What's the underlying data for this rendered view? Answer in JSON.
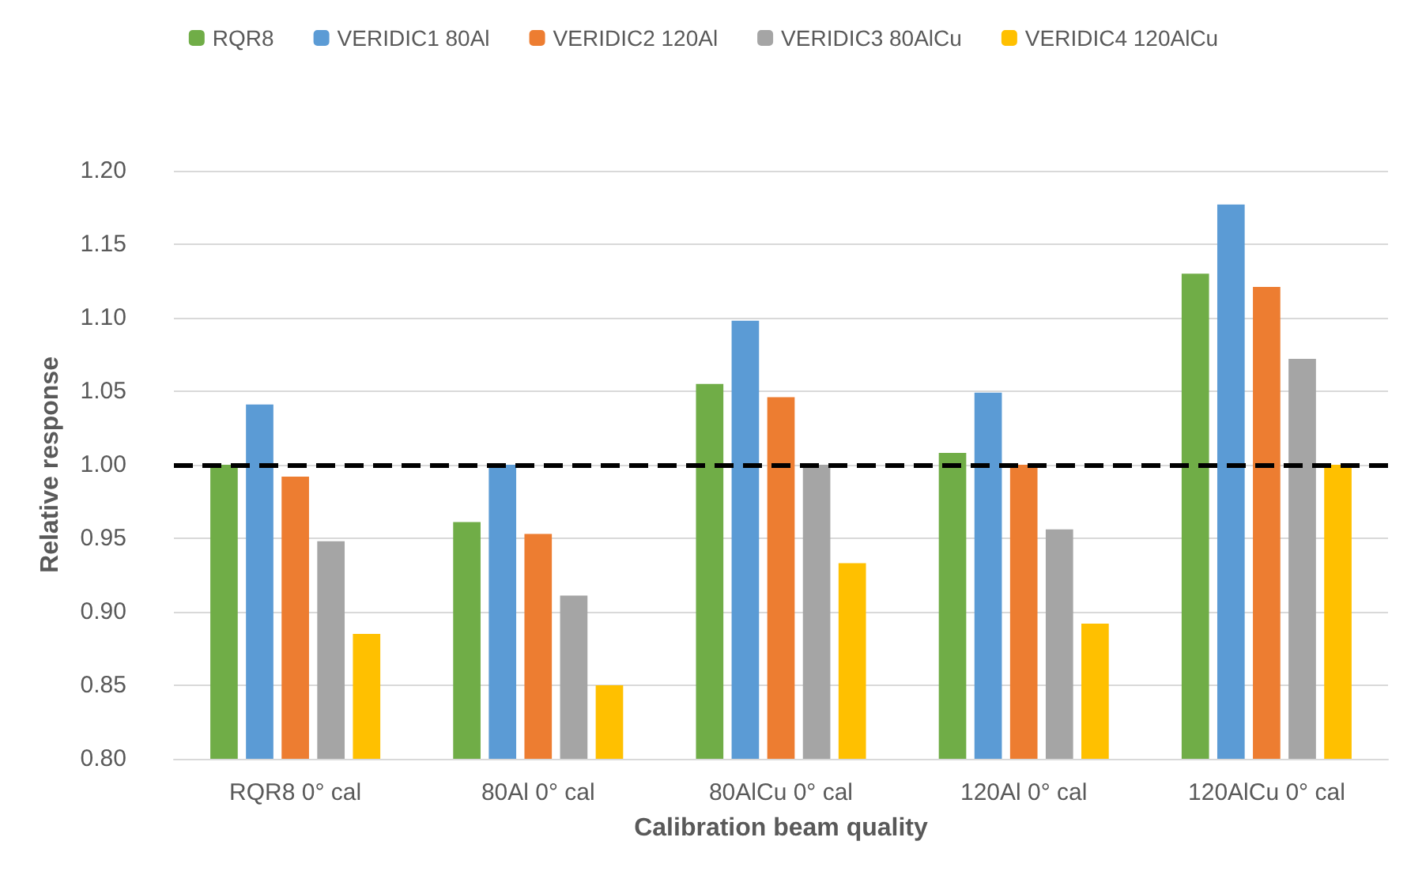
{
  "chart_data": {
    "type": "bar",
    "xlabel": "Calibration beam quality",
    "ylabel": "Relative response",
    "categories": [
      "RQR8 0° cal",
      "80Al 0° cal",
      "80AlCu 0° cal",
      "120Al 0° cal",
      "120AlCu 0° cal"
    ],
    "series": [
      {
        "name": "RQR8",
        "color": "#70ad47",
        "values": [
          1.0,
          0.961,
          1.055,
          1.008,
          1.13
        ]
      },
      {
        "name": "VERIDIC1 80Al",
        "color": "#5b9bd5",
        "values": [
          1.041,
          1.0,
          1.098,
          1.049,
          1.177
        ]
      },
      {
        "name": "VERIDIC2 120Al",
        "color": "#ed7d31",
        "values": [
          0.992,
          0.953,
          1.046,
          1.0,
          1.121
        ]
      },
      {
        "name": "VERIDIC3 80AlCu",
        "color": "#a5a5a5",
        "values": [
          0.948,
          0.911,
          1.0,
          0.956,
          1.072
        ]
      },
      {
        "name": "VERIDIC4 120AlCu",
        "color": "#ffc000",
        "values": [
          0.885,
          0.85,
          0.933,
          0.892,
          1.0
        ]
      }
    ],
    "ylim": [
      0.8,
      1.2
    ],
    "yticks": [
      {
        "value": 0.8,
        "label": "0.80"
      },
      {
        "value": 0.85,
        "label": "0.85"
      },
      {
        "value": 0.9,
        "label": "0.90"
      },
      {
        "value": 0.95,
        "label": "0.95"
      },
      {
        "value": 1.0,
        "label": "1.00"
      },
      {
        "value": 1.05,
        "label": "1.05"
      },
      {
        "value": 1.1,
        "label": "1.10"
      },
      {
        "value": 1.15,
        "label": "1.15"
      },
      {
        "value": 1.2,
        "label": "1.20"
      }
    ],
    "ref_lines": [
      {
        "axis": "y",
        "value": 1.0,
        "color": "#000000",
        "line_style": "dashed"
      }
    ],
    "grid": "y",
    "legend": "top"
  }
}
